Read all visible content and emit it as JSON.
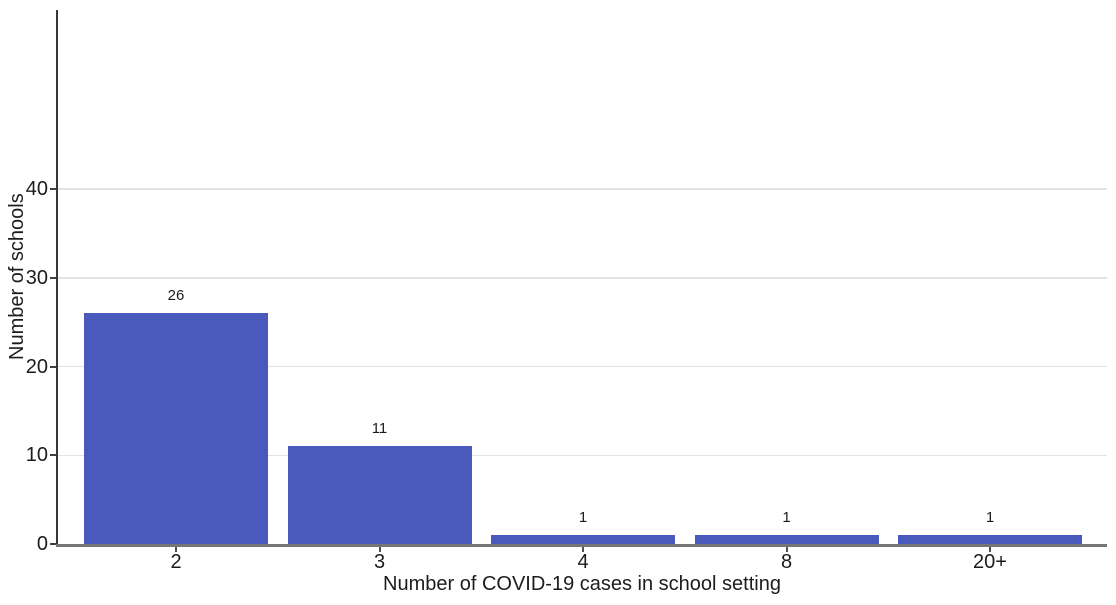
{
  "chart_data": {
    "type": "bar",
    "title": "",
    "categories": [
      "2",
      "3",
      "4",
      "8",
      "20+"
    ],
    "values": [
      26,
      11,
      1,
      1,
      1
    ],
    "bar_labels": [
      "26",
      "11",
      "1",
      "1",
      "1"
    ],
    "xlabel": "Number of COVID-19 cases in school setting",
    "ylabel": "Number of schools",
    "yticks": [
      0,
      10,
      20,
      30,
      40
    ],
    "ylim": [
      0,
      60
    ],
    "xlim_note": "discrete categorical axis",
    "grid": "horizontal major gridlines only",
    "legend_position": "none",
    "bar_color": "#4A59BC",
    "gridline_color": "#e3e3e3",
    "y_axis_line_color": "#383838",
    "x_axis_line_color": "#757575",
    "text_color": "#1c1c1c",
    "background_color": "#ffffff"
  }
}
